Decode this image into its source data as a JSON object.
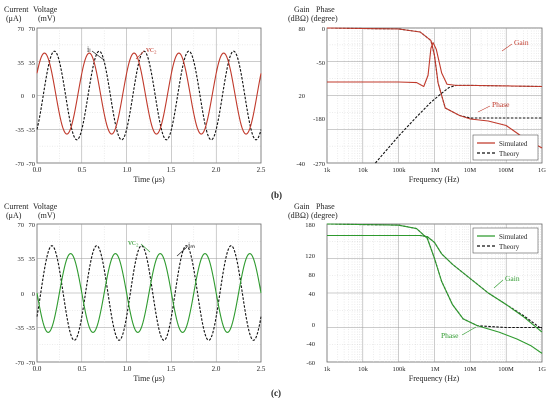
{
  "panel_labels": [
    "(b)",
    "(c)"
  ],
  "colors": {
    "red": "#c0392b",
    "green": "#2e9a2e",
    "theory": "#111111"
  },
  "chart_data": [
    {
      "id": "b-time",
      "type": "line",
      "panel": "(b)",
      "title": "",
      "xlabel": "Time (μs)",
      "ylabel_left": [
        "Current",
        "(μA)"
      ],
      "ylabel_right": [
        "Voltage",
        "(mV)"
      ],
      "xlim": [
        0.0,
        2.5
      ],
      "xticks": [
        "0.0",
        "0.5",
        "1.0",
        "1.5",
        "2.0",
        "2.5"
      ],
      "ylim": [
        -70,
        70
      ],
      "yticks_left": [
        "70",
        "35",
        "0",
        "-35",
        "-70"
      ],
      "yticks_right": [
        "70",
        "35",
        "0",
        "-35",
        "-70"
      ],
      "series": [
        {
          "name": "iₗ",
          "style": "dashed",
          "color": "#111111",
          "signal": {
            "amplitude": 46,
            "offset": 0,
            "frequency_MHz": 2.0,
            "phase_deg": -50
          }
        },
        {
          "name": "vᴄ₂",
          "style": "solid",
          "color": "#c0392b",
          "signal": {
            "amplitude": 42,
            "offset": 2,
            "frequency_MHz": 2.0,
            "phase_deg": 30
          }
        }
      ]
    },
    {
      "id": "b-bode",
      "type": "line",
      "panel": "(b)",
      "title": "",
      "xlabel": "Frequency (Hz)",
      "xscale": "log",
      "ylabel_left": [
        "Gain",
        "(dBΩ)"
      ],
      "ylabel_right": [
        "Phase",
        "(degree)"
      ],
      "xticks": [
        "1k",
        "10k",
        "100k",
        "1M",
        "10M",
        "100M",
        "1G"
      ],
      "yticks_left": [
        "80",
        "20",
        "-40"
      ],
      "yticks_right": [
        "0",
        "-50",
        "-180",
        "-270"
      ],
      "annotations": [
        "Gain",
        "Phase"
      ],
      "legend": {
        "position": "bottom-right",
        "entries": [
          "Simulated",
          "Theory"
        ]
      },
      "traces": [
        {
          "role": "phase-theory",
          "style": "dashed",
          "color": "#111111",
          "points": [
            [
              3,
              0
            ],
            [
              4,
              -1
            ],
            [
              5,
              -2
            ],
            [
              5.6,
              -8
            ],
            [
              5.9,
              -25
            ],
            [
              6.0,
              -55
            ],
            [
              6.1,
              -110
            ],
            [
              6.3,
              -160
            ],
            [
              6.7,
              -175
            ],
            [
              7,
              -180
            ],
            [
              9,
              -180
            ]
          ]
        },
        {
          "role": "phase-simulated",
          "style": "solid",
          "color": "#c0392b",
          "points": [
            [
              3,
              0
            ],
            [
              4,
              -1
            ],
            [
              5,
              -2
            ],
            [
              5.6,
              -8
            ],
            [
              5.9,
              -25
            ],
            [
              6.0,
              -55
            ],
            [
              6.1,
              -110
            ],
            [
              6.3,
              -160
            ],
            [
              6.7,
              -175
            ],
            [
              7,
              -182
            ],
            [
              7.5,
              -186
            ],
            [
              8,
              -195
            ],
            [
              8.5,
              -220
            ],
            [
              9,
              -240
            ]
          ]
        },
        {
          "role": "gain-theory",
          "style": "dashed",
          "color": "#111111",
          "points": [
            [
              4.35,
              -40
            ],
            [
              5,
              -16
            ],
            [
              5.5,
              1
            ],
            [
              5.9,
              14
            ],
            [
              6.2,
              22
            ],
            [
              6.4,
              27
            ],
            [
              6.6,
              29
            ],
            [
              7,
              29
            ],
            [
              8,
              28.5
            ],
            [
              9,
              28
            ]
          ]
        },
        {
          "role": "gain-simulated",
          "style": "solid",
          "color": "#c0392b",
          "points": [
            [
              3,
              32
            ],
            [
              5,
              32
            ],
            [
              5.5,
              31.5
            ],
            [
              5.7,
              28
            ],
            [
              5.82,
              38
            ],
            [
              5.9,
              62
            ],
            [
              5.96,
              67
            ],
            [
              6.05,
              61
            ],
            [
              6.2,
              40
            ],
            [
              6.35,
              30
            ],
            [
              6.6,
              29
            ],
            [
              7,
              29
            ],
            [
              8,
              28.5
            ],
            [
              9,
              28
            ]
          ]
        }
      ]
    },
    {
      "id": "c-time",
      "type": "line",
      "panel": "(c)",
      "title": "",
      "xlabel": "Time (μs)",
      "ylabel_left": [
        "Current",
        "(μA)"
      ],
      "ylabel_right": [
        "Voltage",
        "(mV)"
      ],
      "xlim": [
        0.0,
        2.5
      ],
      "xticks": [
        "0.0",
        "0.5",
        "1.0",
        "1.5",
        "2.0",
        "2.5"
      ],
      "ylim": [
        -70,
        70
      ],
      "yticks_left": [
        "70",
        "35",
        "0",
        "-35",
        "-70"
      ],
      "yticks_right": [
        "70",
        "35",
        "0",
        "-35",
        "-70"
      ],
      "series": [
        {
          "name": "iₘ",
          "style": "dashed",
          "color": "#111111",
          "signal": {
            "amplitude": 48,
            "offset": 0,
            "frequency_MHz": 2.0,
            "phase_deg": -30
          }
        },
        {
          "name": "vᴄ₂",
          "style": "solid",
          "color": "#2e9a2e",
          "signal": {
            "amplitude": 40,
            "offset": 0,
            "frequency_MHz": 2.0,
            "phase_deg": 180
          }
        }
      ]
    },
    {
      "id": "c-bode",
      "type": "line",
      "panel": "(c)",
      "title": "",
      "xlabel": "Frequency (Hz)",
      "xscale": "log",
      "ylabel_left": [
        "Gain",
        "(dBΩ)"
      ],
      "ylabel_right": [
        "Phase",
        "(degree)"
      ],
      "xticks": [
        "1k",
        "10k",
        "100k",
        "1M",
        "10M",
        "100M",
        "1G"
      ],
      "yticks_left": [
        "180",
        "120",
        "80",
        "40",
        "0",
        "-40",
        "-60"
      ],
      "annotations": [
        "Gain",
        "Phase"
      ],
      "legend": {
        "position": "top-right",
        "entries": [
          "Simulated",
          "Theory"
        ]
      },
      "traces": [
        {
          "role": "phase-theory",
          "style": "dashed",
          "color": "#111111",
          "points": [
            [
              3,
              180
            ],
            [
              5,
              178
            ],
            [
              5.5,
              172
            ],
            [
              5.8,
              155
            ],
            [
              6.0,
              120
            ],
            [
              6.2,
              80
            ],
            [
              6.5,
              40
            ],
            [
              6.8,
              15
            ],
            [
              7.2,
              3
            ],
            [
              8,
              0
            ],
            [
              9,
              0
            ]
          ]
        },
        {
          "role": "phase-simulated",
          "style": "solid",
          "color": "#2e9a2e",
          "points": [
            [
              3,
              180
            ],
            [
              5,
              178
            ],
            [
              5.5,
              172
            ],
            [
              5.8,
              155
            ],
            [
              6.0,
              120
            ],
            [
              6.2,
              80
            ],
            [
              6.5,
              40
            ],
            [
              6.8,
              15
            ],
            [
              7.2,
              3
            ],
            [
              7.8,
              -8
            ],
            [
              8.3,
              -20
            ],
            [
              8.7,
              -32
            ],
            [
              9,
              -45
            ]
          ]
        },
        {
          "role": "gain-theory",
          "style": "dashed",
          "color": "#111111",
          "points": [
            [
              3,
              160
            ],
            [
              5,
              160
            ],
            [
              5.6,
              160
            ],
            [
              5.8,
              158
            ],
            [
              6.0,
              148
            ],
            [
              6.2,
              128
            ],
            [
              6.5,
              110
            ],
            [
              7,
              85
            ],
            [
              7.5,
              60
            ],
            [
              8,
              40
            ],
            [
              8.5,
              20
            ],
            [
              9,
              -3
            ]
          ]
        },
        {
          "role": "gain-simulated",
          "style": "solid",
          "color": "#2e9a2e",
          "points": [
            [
              3,
              160
            ],
            [
              5,
              160
            ],
            [
              5.6,
              160
            ],
            [
              5.8,
              158
            ],
            [
              6.0,
              148
            ],
            [
              6.2,
              128
            ],
            [
              6.5,
              110
            ],
            [
              7,
              85
            ],
            [
              7.5,
              60
            ],
            [
              8,
              40
            ],
            [
              8.5,
              18
            ],
            [
              9,
              -8
            ]
          ]
        }
      ]
    }
  ]
}
